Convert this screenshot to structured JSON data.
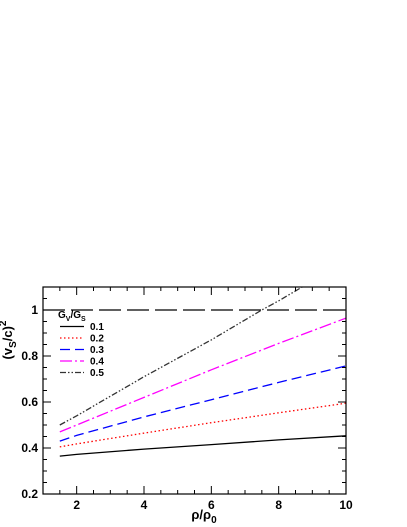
{
  "chart_data": {
    "type": "line",
    "xlim": [
      1,
      10
    ],
    "ylim": [
      0.2,
      1.1
    ],
    "x_ticks": [
      "2",
      "4",
      "6",
      "8",
      "10"
    ],
    "y_ticks": [
      "0.2",
      "0.4",
      "0.6",
      "0.8",
      "1"
    ],
    "x_tick_values": [
      2,
      4,
      6,
      8,
      10
    ],
    "y_tick_values": [
      0.2,
      0.4,
      0.6,
      0.8,
      1.0
    ],
    "xlabel": {
      "main": "ρ/ρ",
      "sub": "0"
    },
    "ylabel": {
      "pre": "(v",
      "sub": "S",
      "mid": "/c)",
      "sup": "2"
    },
    "legend": {
      "title_main": "G",
      "title_sub1": "V",
      "title_sep": "/G",
      "title_sub2": "S",
      "placement": "top-left"
    },
    "reference_line": {
      "y": 1.0,
      "style": "long-dash",
      "color": "#000000"
    },
    "series": [
      {
        "name": "0.1",
        "color": "#000000",
        "style": "solid",
        "x": [
          1.5,
          2,
          4,
          6,
          8,
          10
        ],
        "y": [
          0.365,
          0.372,
          0.395,
          0.415,
          0.435,
          0.453
        ]
      },
      {
        "name": "0.2",
        "color": "#ff0000",
        "style": "dotted",
        "x": [
          1.5,
          2,
          4,
          6,
          8,
          10
        ],
        "y": [
          0.405,
          0.418,
          0.465,
          0.51,
          0.553,
          0.595
        ]
      },
      {
        "name": "0.3",
        "color": "#0000ff",
        "style": "dashed",
        "x": [
          1.5,
          2,
          4,
          6,
          8,
          10
        ],
        "y": [
          0.43,
          0.455,
          0.535,
          0.61,
          0.685,
          0.757
        ]
      },
      {
        "name": "0.4",
        "color": "#ff00ff",
        "style": "dash-dot",
        "x": [
          1.5,
          2,
          4,
          6,
          8,
          10
        ],
        "y": [
          0.47,
          0.5,
          0.62,
          0.74,
          0.855,
          0.965
        ]
      },
      {
        "name": "0.5",
        "color": "#333333",
        "style": "dash-dot-dot",
        "x": [
          1.5,
          2,
          4,
          6,
          7.5,
          8,
          8.7
        ],
        "y": [
          0.5,
          0.54,
          0.71,
          0.87,
          1.0,
          1.04,
          1.1
        ]
      }
    ]
  }
}
